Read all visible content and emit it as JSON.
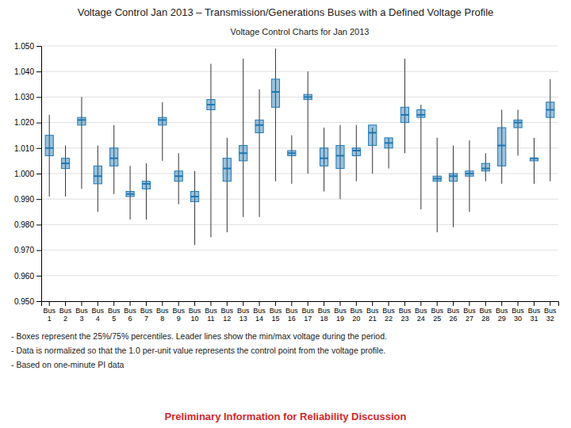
{
  "chart_data": {
    "type": "box",
    "title": "Voltage Control Jan 2013 – Transmission/Generations Buses with a Defined Voltage Profile",
    "subtitle": "Voltage Control Charts for Jan 2013",
    "annotations": [
      "- Boxes represent the 25%/75%  percentiles.  Leader lines show the min/max voltage during the period.",
      "- Data is normalized so that the 1.0 per-unit value represents the control point from the voltage profile.",
      "- Based on one-minute PI data",
      "Preliminary Information for Reliability Discussion"
    ],
    "categories": [
      "Bus\n1",
      "Bus\n2",
      "Bus\n3",
      "Bus\n4",
      "Bus\n5",
      "Bus\n6",
      "Bus\n7",
      "Bus\n8",
      "Bus\n9",
      "Bus\n10",
      "Bus\n11",
      "Bus\n12",
      "Bus\n13",
      "Bus\n14",
      "Bus\n15",
      "Bus\n16",
      "Bus\n17",
      "Bus\n18",
      "Bus\n19",
      "Bus\n20",
      "Bus\n21",
      "Bus\n22",
      "Bus\n23",
      "Bus\n24",
      "Bus\n25",
      "Bus\n26",
      "Bus\n27",
      "Bus\n28",
      "Bus\n29",
      "Bus\n30",
      "Bus\n31",
      "Bus\n32"
    ],
    "min": [
      0.991,
      0.991,
      0.994,
      0.985,
      0.992,
      0.982,
      0.982,
      1.005,
      0.988,
      0.972,
      0.975,
      0.977,
      0.983,
      0.983,
      0.997,
      0.996,
      1.0,
      0.993,
      0.99,
      0.997,
      1.0,
      1.002,
      1.008,
      0.986,
      0.977,
      0.979,
      0.985,
      0.997,
      0.996,
      1.007,
      0.996,
      0.997
    ],
    "q1": [
      1.007,
      1.002,
      1.019,
      0.996,
      1.003,
      0.991,
      0.994,
      1.019,
      0.997,
      0.989,
      1.025,
      0.997,
      1.005,
      1.016,
      1.026,
      1.007,
      1.029,
      1.003,
      1.002,
      1.007,
      1.011,
      1.01,
      1.02,
      1.022,
      0.997,
      0.997,
      0.999,
      1.001,
      1.003,
      1.018,
      1.005,
      1.022
    ],
    "median": [
      1.01,
      1.004,
      1.021,
      0.999,
      1.006,
      0.992,
      0.996,
      1.021,
      0.999,
      0.991,
      1.027,
      1.002,
      1.008,
      1.019,
      1.032,
      1.008,
      1.03,
      1.006,
      1.007,
      1.009,
      1.016,
      1.012,
      1.023,
      1.023,
      0.998,
      0.999,
      1.0,
      1.002,
      1.011,
      1.02,
      1.006,
      1.025
    ],
    "q3": [
      1.015,
      1.006,
      1.022,
      1.003,
      1.01,
      0.993,
      0.997,
      1.022,
      1.001,
      0.993,
      1.029,
      1.006,
      1.011,
      1.021,
      1.037,
      1.009,
      1.031,
      1.01,
      1.011,
      1.01,
      1.019,
      1.014,
      1.026,
      1.025,
      0.999,
      1.0,
      1.001,
      1.004,
      1.018,
      1.021,
      1.006,
      1.028
    ],
    "max": [
      1.023,
      1.011,
      1.03,
      1.011,
      1.019,
      1.003,
      1.004,
      1.028,
      1.008,
      1.001,
      1.043,
      1.014,
      1.045,
      1.033,
      1.049,
      1.015,
      1.04,
      1.018,
      1.019,
      1.019,
      1.018,
      1.014,
      1.045,
      1.027,
      1.014,
      1.011,
      1.013,
      1.008,
      1.025,
      1.025,
      1.014,
      1.037
    ],
    "ylim": [
      0.95,
      1.05
    ],
    "yticks": [
      {
        "value": 0.95,
        "label": "0.950"
      },
      {
        "value": 0.96,
        "label": "0.960"
      },
      {
        "value": 0.97,
        "label": "0.970"
      },
      {
        "value": 0.98,
        "label": "0.980"
      },
      {
        "value": 0.99,
        "label": "0.990"
      },
      {
        "value": 1.0,
        "label": "1.000"
      },
      {
        "value": 1.01,
        "label": "1.010"
      },
      {
        "value": 1.02,
        "label": "1.020"
      },
      {
        "value": 1.03,
        "label": "1.030"
      },
      {
        "value": 1.04,
        "label": "1.040"
      },
      {
        "value": 1.05,
        "label": "1.050"
      }
    ],
    "grid": true
  }
}
